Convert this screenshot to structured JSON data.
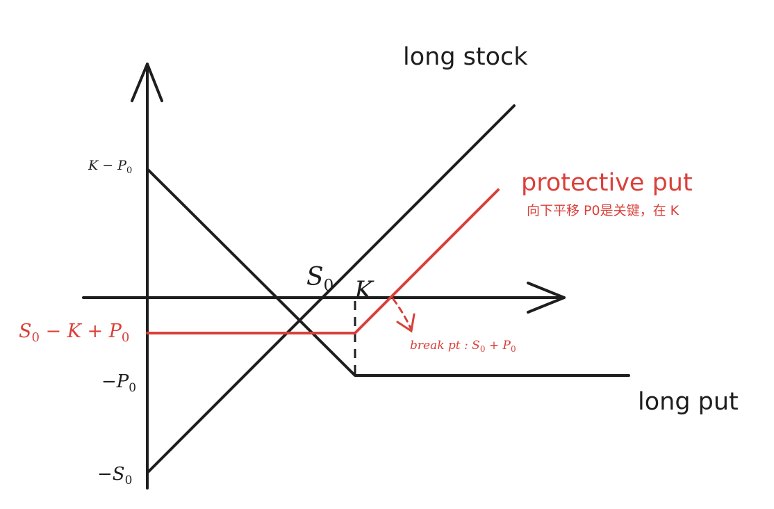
{
  "labels": {
    "long_stock": "long stock",
    "long_put": "long put",
    "protective_put": "protective put",
    "note": "向下平移 P0是关键，在 K",
    "y_k_minus_p0": "K − P",
    "y_k_minus_p0_sub": "0",
    "y_s0_minus_k_plus_p0_a": "S",
    "y_s0_minus_k_plus_p0_sub": "0",
    "y_s0_minus_k_plus_p0_b": " − K + P",
    "y_s0_minus_k_plus_p0_sub2": "0",
    "y_minus_p0": "−P",
    "y_minus_p0_sub": "0",
    "y_minus_s0": "−S",
    "y_minus_s0_sub": "0",
    "x_s0": "S",
    "x_s0_sub": "0",
    "x_k": "K",
    "break_pt_a": "break pt : S",
    "break_pt_sub": "0",
    "break_pt_b": " + P",
    "break_pt_sub2": "0"
  },
  "colors": {
    "ink": "#1e1e1e",
    "accent": "#d9403a"
  }
}
